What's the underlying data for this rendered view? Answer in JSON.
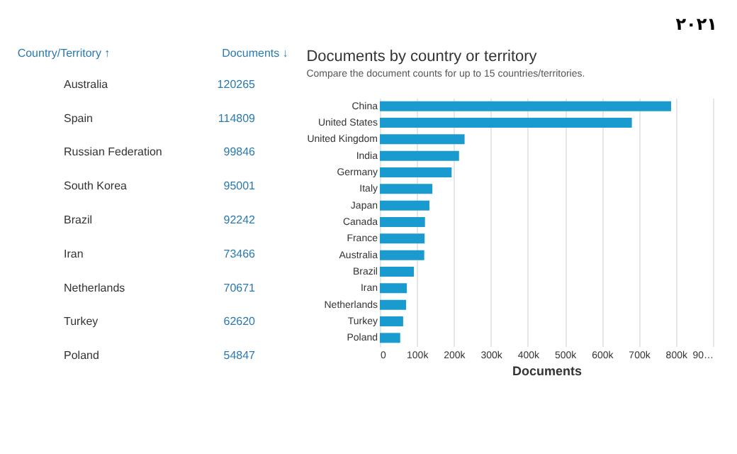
{
  "chart_data": [
    {
      "type": "other",
      "xlabel": "Country/Territory ↑",
      "ylabel": "Documents ↓",
      "categories": [
        "Australia",
        "Spain",
        "Russian Federation",
        "South Korea",
        "Brazil",
        "Iran",
        "Netherlands",
        "Turkey",
        "Poland"
      ],
      "values": [
        120265,
        114809,
        99846,
        95001,
        92242,
        73466,
        70671,
        62620,
        54847
      ],
      "data_labels": true
    },
    {
      "type": "bar",
      "orientation": "horizontal",
      "title": "Documents by country or territory",
      "subtitle": "Compare the document counts for up to 15 countries/territories.",
      "xlabel": "Documents",
      "annotations": [
        "۲۰۲۱"
      ],
      "color": "#1a9bd0",
      "grid": "x",
      "categories": [
        "China",
        "United States",
        "United Kingdom",
        "India",
        "Germany",
        "Italy",
        "Japan",
        "Canada",
        "France",
        "Australia",
        "Brazil",
        "Iran",
        "Netherlands",
        "Turkey",
        "Poland"
      ],
      "values": [
        787000,
        681000,
        229000,
        214000,
        194000,
        142000,
        134000,
        122000,
        121000,
        120000,
        92000,
        73000,
        71000,
        63000,
        55000
      ],
      "xlim": [
        0,
        900000
      ],
      "xticks": [
        0,
        {
          "value": 100000,
          "label": "100k"
        },
        {
          "value": 200000,
          "label": "200k"
        },
        {
          "value": 300000,
          "label": "300k"
        },
        {
          "value": 400000,
          "label": "400k"
        },
        {
          "value": 500000,
          "label": "500k"
        },
        {
          "value": 600000,
          "label": "600k"
        },
        {
          "value": 700000,
          "label": "700k"
        },
        {
          "value": 800000,
          "label": "800k"
        },
        {
          "value": 900000,
          "label": "90…"
        }
      ]
    }
  ]
}
